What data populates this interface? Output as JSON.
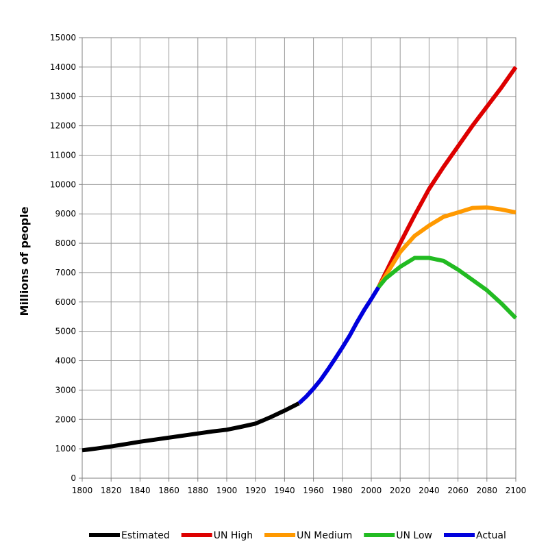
{
  "chart_data": {
    "type": "line",
    "title": "",
    "xlabel": "",
    "ylabel": "Millions of people",
    "xlim": [
      1800,
      2100
    ],
    "ylim": [
      0,
      15000
    ],
    "x_ticks": [
      1800,
      1820,
      1840,
      1860,
      1880,
      1900,
      1920,
      1940,
      1960,
      1980,
      2000,
      2020,
      2040,
      2060,
      2080,
      2100
    ],
    "y_ticks": [
      0,
      1000,
      2000,
      3000,
      4000,
      5000,
      6000,
      7000,
      8000,
      9000,
      10000,
      11000,
      12000,
      13000,
      14000,
      15000
    ],
    "grid": true,
    "legend_position": "bottom",
    "series": [
      {
        "name": "Estimated",
        "color": "#000000",
        "points": [
          [
            1800,
            950
          ],
          [
            1810,
            1010
          ],
          [
            1820,
            1080
          ],
          [
            1830,
            1160
          ],
          [
            1840,
            1240
          ],
          [
            1850,
            1310
          ],
          [
            1860,
            1380
          ],
          [
            1870,
            1450
          ],
          [
            1880,
            1520
          ],
          [
            1890,
            1590
          ],
          [
            1900,
            1650
          ],
          [
            1910,
            1750
          ],
          [
            1920,
            1860
          ],
          [
            1930,
            2070
          ],
          [
            1940,
            2300
          ],
          [
            1950,
            2550
          ]
        ]
      },
      {
        "name": "Actual",
        "color": "#0000dd",
        "points": [
          [
            1950,
            2550
          ],
          [
            1955,
            2780
          ],
          [
            1960,
            3050
          ],
          [
            1965,
            3350
          ],
          [
            1970,
            3700
          ],
          [
            1975,
            4070
          ],
          [
            1980,
            4450
          ],
          [
            1985,
            4850
          ],
          [
            1990,
            5300
          ],
          [
            1995,
            5720
          ],
          [
            2000,
            6100
          ],
          [
            2005,
            6500
          ]
        ]
      },
      {
        "name": "UN High",
        "color": "#dd0000",
        "points": [
          [
            2005,
            6500
          ],
          [
            2010,
            7000
          ],
          [
            2020,
            8000
          ],
          [
            2030,
            8950
          ],
          [
            2040,
            9850
          ],
          [
            2050,
            10600
          ],
          [
            2060,
            11300
          ],
          [
            2070,
            12000
          ],
          [
            2080,
            12650
          ],
          [
            2090,
            13300
          ],
          [
            2100,
            14000
          ]
        ]
      },
      {
        "name": "UN Medium",
        "color": "#ff9900",
        "points": [
          [
            2005,
            6500
          ],
          [
            2010,
            6900
          ],
          [
            2020,
            7700
          ],
          [
            2030,
            8250
          ],
          [
            2040,
            8600
          ],
          [
            2050,
            8900
          ],
          [
            2060,
            9050
          ],
          [
            2070,
            9200
          ],
          [
            2080,
            9220
          ],
          [
            2090,
            9150
          ],
          [
            2100,
            9050
          ]
        ]
      },
      {
        "name": "UN Low",
        "color": "#22bb22",
        "points": [
          [
            2005,
            6500
          ],
          [
            2010,
            6800
          ],
          [
            2020,
            7200
          ],
          [
            2030,
            7500
          ],
          [
            2040,
            7500
          ],
          [
            2050,
            7400
          ],
          [
            2060,
            7100
          ],
          [
            2070,
            6750
          ],
          [
            2080,
            6400
          ],
          [
            2090,
            5950
          ],
          [
            2100,
            5450
          ]
        ]
      }
    ],
    "legend_order": [
      "Estimated",
      "UN High",
      "UN Medium",
      "UN Low",
      "Actual"
    ]
  }
}
